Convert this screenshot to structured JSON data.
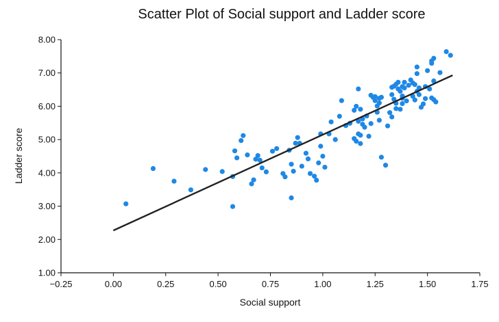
{
  "chart_data": {
    "type": "scatter",
    "title": "Scatter Plot of Social support and Ladder score",
    "xlabel": "Social support",
    "ylabel": "Ladder score",
    "xlim": [
      -0.25,
      1.75
    ],
    "ylim": [
      1.0,
      8.0
    ],
    "xticks": [
      "−0.25",
      "0.00",
      "0.25",
      "0.50",
      "0.75",
      "1.00",
      "1.25",
      "1.50",
      "1.75"
    ],
    "yticks": [
      "1.00",
      "2.00",
      "3.00",
      "4.00",
      "5.00",
      "6.00",
      "7.00",
      "8.00"
    ],
    "grid": false,
    "legend": "none",
    "point_color": "#1f88e5",
    "trend_color": "#222222",
    "trendline": {
      "x": [
        0.0,
        1.62
      ],
      "y": [
        2.27,
        6.93
      ]
    },
    "points": [
      [
        0.06,
        3.07
      ],
      [
        0.19,
        4.13
      ],
      [
        0.29,
        3.75
      ],
      [
        0.37,
        3.49
      ],
      [
        0.44,
        4.1
      ],
      [
        0.52,
        4.04
      ],
      [
        0.57,
        3.89
      ],
      [
        0.57,
        2.99
      ],
      [
        0.58,
        4.66
      ],
      [
        0.59,
        4.45
      ],
      [
        0.61,
        4.97
      ],
      [
        0.62,
        5.12
      ],
      [
        0.64,
        4.54
      ],
      [
        0.66,
        3.67
      ],
      [
        0.67,
        3.79
      ],
      [
        0.68,
        4.41
      ],
      [
        0.69,
        4.52
      ],
      [
        0.7,
        4.38
      ],
      [
        0.71,
        4.15
      ],
      [
        0.73,
        4.03
      ],
      [
        0.76,
        4.65
      ],
      [
        0.78,
        4.73
      ],
      [
        0.81,
        3.98
      ],
      [
        0.82,
        3.88
      ],
      [
        0.84,
        4.68
      ],
      [
        0.85,
        4.26
      ],
      [
        0.85,
        3.25
      ],
      [
        0.86,
        4.05
      ],
      [
        0.87,
        4.89
      ],
      [
        0.88,
        5.06
      ],
      [
        0.89,
        4.89
      ],
      [
        0.9,
        4.2
      ],
      [
        0.92,
        4.59
      ],
      [
        0.93,
        4.42
      ],
      [
        0.94,
        3.98
      ],
      [
        0.96,
        3.9
      ],
      [
        0.97,
        3.78
      ],
      [
        0.98,
        4.3
      ],
      [
        0.99,
        4.8
      ],
      [
        0.99,
        5.17
      ],
      [
        1.0,
        4.5
      ],
      [
        1.01,
        4.17
      ],
      [
        1.03,
        5.17
      ],
      [
        1.04,
        5.53
      ],
      [
        1.06,
        5.0
      ],
      [
        1.08,
        5.7
      ],
      [
        1.09,
        6.17
      ],
      [
        1.11,
        5.42
      ],
      [
        1.13,
        5.49
      ],
      [
        1.15,
        5.88
      ],
      [
        1.15,
        5.03
      ],
      [
        1.16,
        6.0
      ],
      [
        1.16,
        4.95
      ],
      [
        1.17,
        5.55
      ],
      [
        1.17,
        5.17
      ],
      [
        1.17,
        6.52
      ],
      [
        1.18,
        5.91
      ],
      [
        1.18,
        5.13
      ],
      [
        1.18,
        4.88
      ],
      [
        1.19,
        5.62
      ],
      [
        1.19,
        5.46
      ],
      [
        1.2,
        5.37
      ],
      [
        1.21,
        5.71
      ],
      [
        1.22,
        5.1
      ],
      [
        1.23,
        5.48
      ],
      [
        1.23,
        6.33
      ],
      [
        1.24,
        6.27
      ],
      [
        1.25,
        6.17
      ],
      [
        1.25,
        6.29
      ],
      [
        1.26,
        6.01
      ],
      [
        1.26,
        5.82
      ],
      [
        1.27,
        6.24
      ],
      [
        1.27,
        6.1
      ],
      [
        1.27,
        5.58
      ],
      [
        1.28,
        6.27
      ],
      [
        1.28,
        4.47
      ],
      [
        1.3,
        4.23
      ],
      [
        1.31,
        5.41
      ],
      [
        1.32,
        5.81
      ],
      [
        1.33,
        5.68
      ],
      [
        1.33,
        6.35
      ],
      [
        1.33,
        6.57
      ],
      [
        1.34,
        6.6
      ],
      [
        1.34,
        6.21
      ],
      [
        1.35,
        6.66
      ],
      [
        1.35,
        6.09
      ],
      [
        1.35,
        5.93
      ],
      [
        1.36,
        6.72
      ],
      [
        1.36,
        6.52
      ],
      [
        1.37,
        6.45
      ],
      [
        1.37,
        5.91
      ],
      [
        1.38,
        6.59
      ],
      [
        1.38,
        6.31
      ],
      [
        1.38,
        6.24
      ],
      [
        1.38,
        6.08
      ],
      [
        1.39,
        6.72
      ],
      [
        1.39,
        6.55
      ],
      [
        1.4,
        6.16
      ],
      [
        1.41,
        6.63
      ],
      [
        1.42,
        6.79
      ],
      [
        1.43,
        6.7
      ],
      [
        1.43,
        6.3
      ],
      [
        1.44,
        6.19
      ],
      [
        1.44,
        6.65
      ],
      [
        1.45,
        6.98
      ],
      [
        1.45,
        6.45
      ],
      [
        1.45,
        7.18
      ],
      [
        1.46,
        6.55
      ],
      [
        1.46,
        6.35
      ],
      [
        1.47,
        5.97
      ],
      [
        1.48,
        6.07
      ],
      [
        1.49,
        6.59
      ],
      [
        1.49,
        6.23
      ],
      [
        1.5,
        7.07
      ],
      [
        1.51,
        6.52
      ],
      [
        1.52,
        7.36
      ],
      [
        1.52,
        6.25
      ],
      [
        1.52,
        7.29
      ],
      [
        1.53,
        7.44
      ],
      [
        1.53,
        6.76
      ],
      [
        1.53,
        6.2
      ],
      [
        1.54,
        6.13
      ],
      [
        1.56,
        7.01
      ],
      [
        1.59,
        7.64
      ],
      [
        1.61,
        7.53
      ]
    ]
  }
}
